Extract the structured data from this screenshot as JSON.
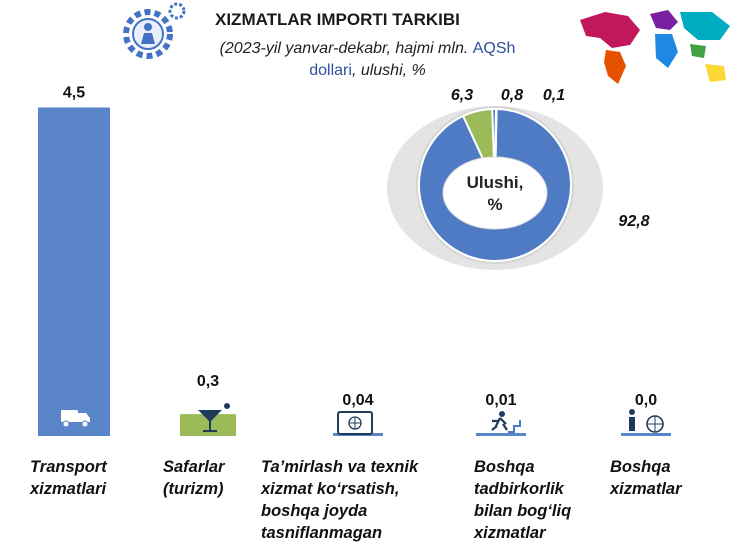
{
  "header": {
    "title": "XIZMATLAR IMPORTI TARKIBI",
    "subtitle_italic_1": "(2023-yil yanvar-dekabr, hajmi mln.",
    "subtitle_plain_1": "AQSh",
    "subtitle_plain_2": "dollari",
    "subtitle_italic_2": ", ulushi, %"
  },
  "chart_data": [
    {
      "type": "bar",
      "categories": [
        "Transport xizmatlari",
        "Safarlar (turizm)",
        "Ta’mirlash va texnik xizmat ko‘rsatish, boshqa joyda tasniflanmagan",
        "Boshqa tadbirkorlik bilan bog‘liq xizmatlar",
        "Boshqa xizmatlar"
      ],
      "values": [
        4.5,
        0.3,
        0.04,
        0.01,
        0.0
      ],
      "data_labels": [
        "4,5",
        "0,3",
        "0,04",
        "0,01",
        "0,0"
      ],
      "colors": [
        "#5b85c9",
        "#9bbb59",
        "#5b85c9",
        "#5b85c9",
        "#5b85c9"
      ]
    },
    {
      "type": "pie",
      "center_label": "Ulushi, %",
      "values": [
        92.8,
        6.3,
        0.8,
        0.1
      ],
      "data_labels": [
        "92,8",
        "6,3",
        "0,8",
        "0,1"
      ],
      "colors": [
        "#4f7ac4",
        "#9bbb59",
        "#4f7ac4",
        "#4f7ac4"
      ]
    }
  ],
  "category_lines": [
    [
      "Transport",
      "xizmatlari"
    ],
    [
      "Safarlar",
      "(turizm)"
    ],
    [
      "Ta’mirlash va texnik",
      "xizmat ko‘rsatish,",
      "boshqa joyda",
      "tasniflanmagan"
    ],
    [
      "Boshqa",
      "tadbirkorlik",
      "bilan bog‘liq",
      "xizmatlar"
    ],
    [
      "Boshqa",
      "xizmatlar"
    ]
  ],
  "icons": {
    "logo": "gear-worker-icon",
    "map": "world-map-icon",
    "bar_icons": [
      "truck-icon",
      "cocktail-icon",
      "monitor-globe-icon",
      "runner-icon",
      "person-globe-icon"
    ]
  }
}
